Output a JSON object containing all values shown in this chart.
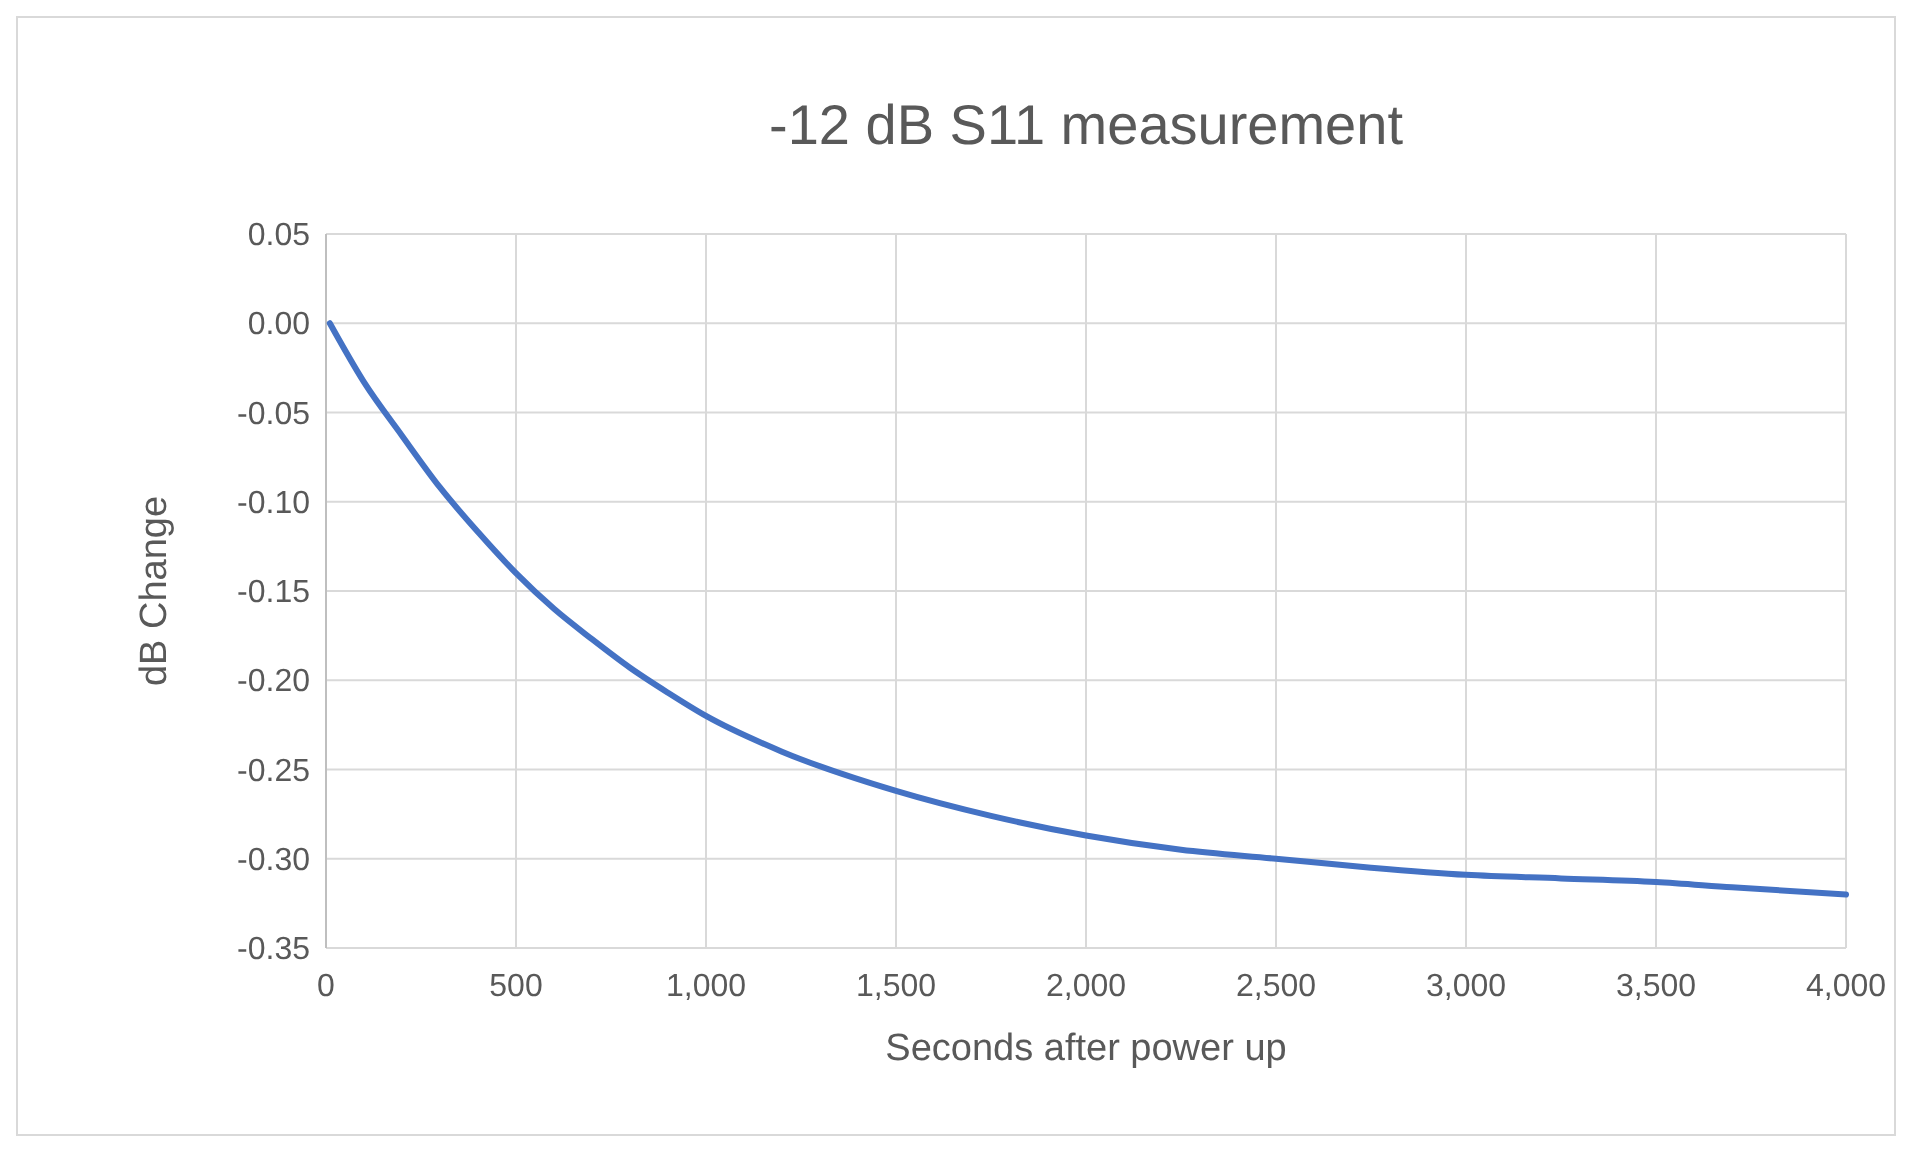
{
  "chart_data": {
    "type": "line",
    "title": "-12 dB S11 measurement",
    "xlabel": "Seconds after power up",
    "ylabel": "dB Change",
    "x": [
      10,
      100,
      200,
      300,
      400,
      500,
      600,
      700,
      800,
      900,
      1000,
      1200,
      1500,
      1750,
      2000,
      2250,
      2500,
      2750,
      3000,
      3250,
      3500,
      3700,
      4000
    ],
    "series": [
      {
        "color": "#4472c4",
        "values": [
          0.0,
          -0.033,
          -0.063,
          -0.092,
          -0.117,
          -0.14,
          -0.16,
          -0.177,
          -0.193,
          -0.207,
          -0.22,
          -0.24,
          -0.262,
          -0.276,
          -0.287,
          -0.295,
          -0.3,
          -0.305,
          -0.309,
          -0.311,
          -0.313,
          -0.316,
          -0.32
        ]
      }
    ],
    "xlim": [
      0,
      4000
    ],
    "ylim": [
      -0.35,
      0.05
    ],
    "xticks": [
      0,
      500,
      {
        "value": 1000,
        "label": "1,000"
      },
      {
        "value": 1500,
        "label": "1,500"
      },
      {
        "value": 2000,
        "label": "2,000"
      },
      {
        "value": 2500,
        "label": "2,500"
      },
      {
        "value": 3000,
        "label": "3,000"
      },
      {
        "value": 3500,
        "label": "3,500"
      },
      {
        "value": 4000,
        "label": "4,000"
      }
    ],
    "yticks": [
      0.05,
      {
        "value": 0,
        "label": "0.00"
      },
      -0.05,
      {
        "value": -0.1,
        "label": "-0.10"
      },
      -0.15,
      {
        "value": -0.2,
        "label": "-0.20"
      },
      -0.25,
      {
        "value": -0.3,
        "label": "-0.30"
      },
      -0.35
    ],
    "grid": true,
    "marker": "none",
    "line_style": "solid"
  }
}
